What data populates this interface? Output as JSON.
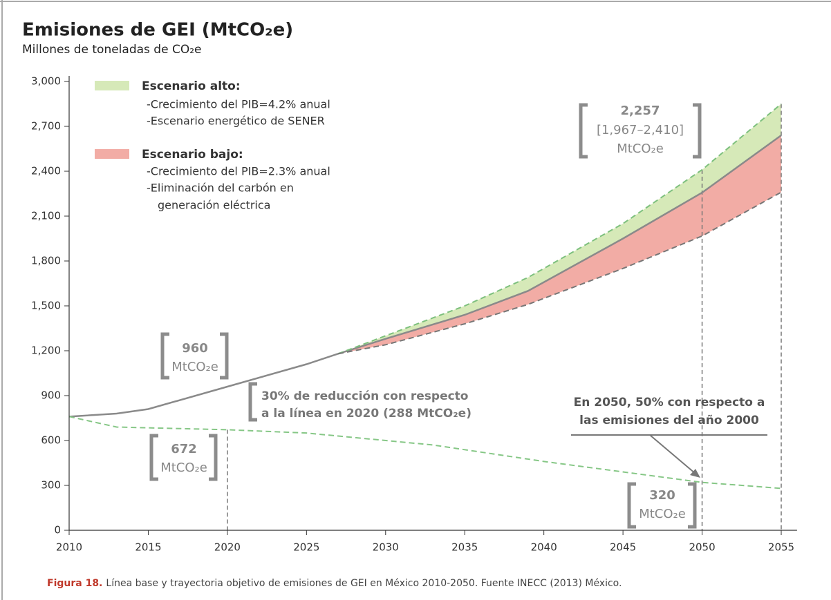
{
  "chart_data": {
    "type": "line",
    "title": "Emisiones de GEI (MtCO₂e)",
    "subtitle": "Millones de toneladas de CO₂e",
    "xlim": [
      2010,
      2056
    ],
    "ylim": [
      0,
      3000
    ],
    "xticks": [
      2010,
      2015,
      2020,
      2025,
      2030,
      2035,
      2040,
      2045,
      2050,
      2055
    ],
    "yticks": [
      0,
      300,
      600,
      900,
      {
        "value": 1200,
        "label": "1,200"
      },
      {
        "value": 1500,
        "label": "1,500"
      },
      {
        "value": 1800,
        "label": "1,800"
      },
      {
        "value": 2100,
        "label": "2,100"
      },
      {
        "value": 2400,
        "label": "2,400"
      },
      {
        "value": 2700,
        "label": "2,700"
      },
      {
        "value": 3000,
        "label": "3,000"
      }
    ],
    "grid": false,
    "series": [
      {
        "color": "#8a8a8a",
        "dash": false,
        "x": [
          2010,
          2013,
          2015,
          2020,
          2025,
          2027,
          2030,
          2035,
          2039,
          2045,
          2050,
          2055
        ],
        "values": [
          760,
          780,
          810,
          960,
          1110,
          1180,
          1280,
          1440,
          1600,
          1950,
          2257,
          2640
        ]
      },
      {
        "color": "#7dc07d",
        "dash": true,
        "x": [
          2027,
          2030,
          2035,
          2039,
          2045,
          2050,
          2055
        ],
        "values": [
          1180,
          1300,
          1500,
          1690,
          2050,
          2410,
          2850
        ]
      },
      {
        "color": "#777777",
        "dash": true,
        "x": [
          2027,
          2030,
          2035,
          2039,
          2045,
          2050,
          2055
        ],
        "values": [
          1180,
          1240,
          1380,
          1510,
          1750,
          1967,
          2260
        ]
      },
      {
        "color": "#86c786",
        "dash": true,
        "x": [
          2010,
          2013,
          2020,
          2025,
          2033,
          2040,
          2045,
          2050,
          2055
        ],
        "values": [
          760,
          690,
          672,
          650,
          570,
          460,
          390,
          320,
          280
        ]
      }
    ],
    "legend": [
      {
        "title": "Escenario alto:",
        "color": "#d6e9b8",
        "items": [
          "-Crecimiento del PIB=4.2% anual",
          "-Escenario energético de SENER"
        ]
      },
      {
        "title": "Escenario bajo:",
        "color": "#f2aca5",
        "items": [
          "-Crecimiento del PIB=2.3% anual",
          "-Eliminación del carbón en",
          "generación eléctrica"
        ]
      }
    ],
    "annotations": [
      [
        "2,257",
        "[1,967–2,410]",
        "MtCO₂e"
      ],
      [
        "960",
        "MtCO₂e"
      ],
      [
        "672",
        "MtCO₂e"
      ],
      [
        "320",
        "MtCO₂e"
      ],
      [
        "30% de reducción con respecto",
        "a la línea en 2020 (288 MtCO₂e)"
      ],
      [
        "En 2050, 50% con respecto a",
        "las emisiones del año 2000"
      ]
    ],
    "caption": {
      "label": "Figura 18.",
      "text": "Línea base y trayectoria objetivo de emisiones de GEI en México 2010-2050. Fuente INECC (2013) México."
    }
  }
}
